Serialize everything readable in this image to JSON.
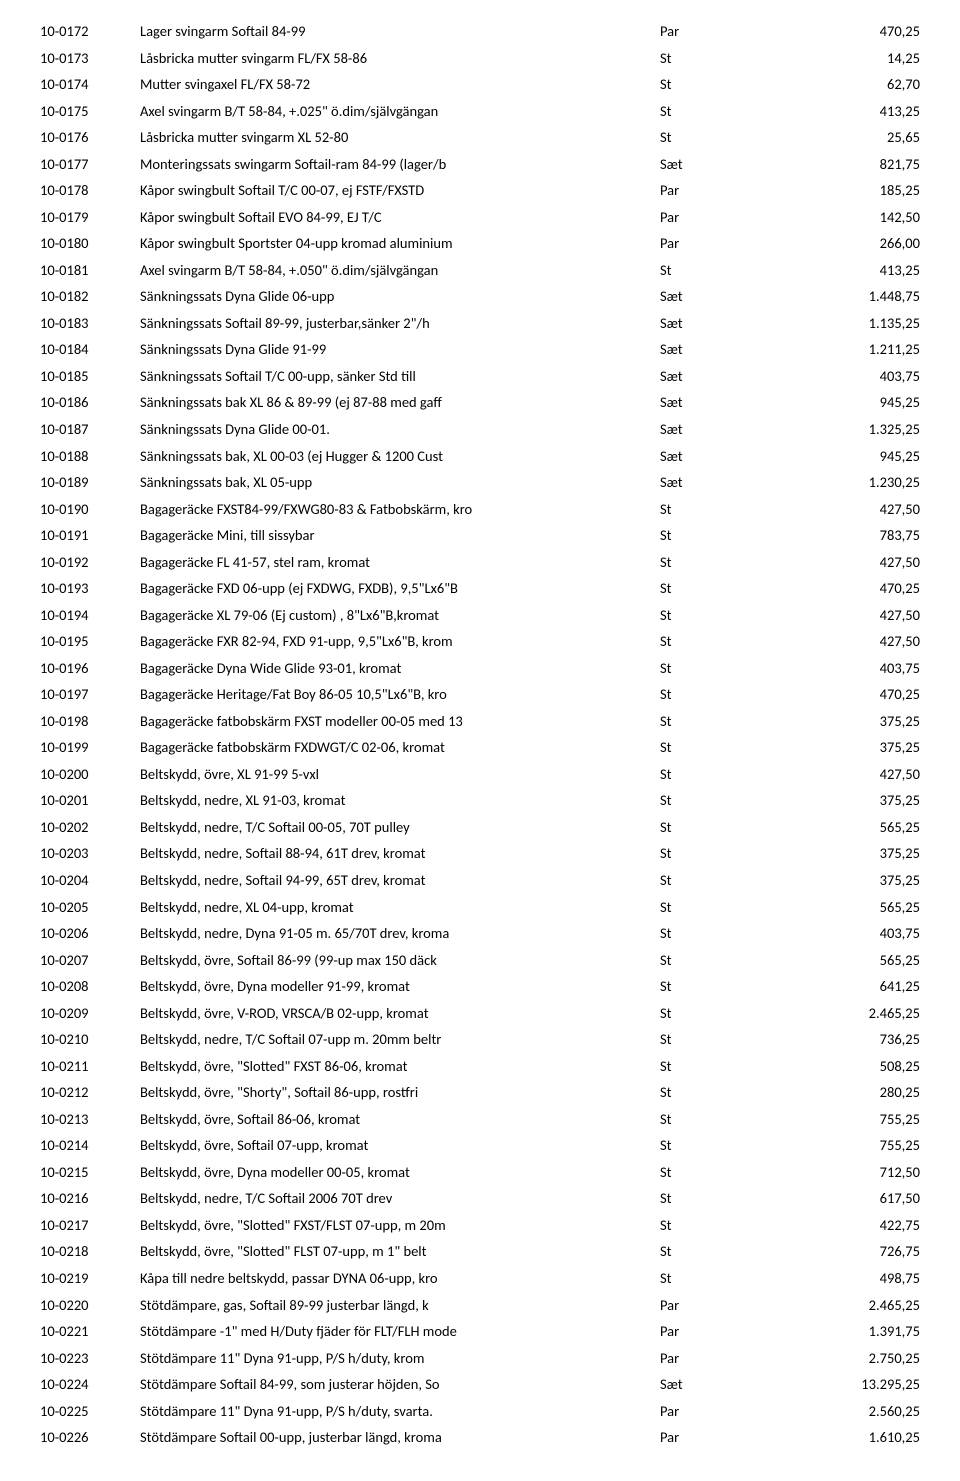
{
  "rows": [
    {
      "code": "10-0172",
      "desc": "Lager svingarm Softail 84-99",
      "unit": "Par",
      "price": "470,25"
    },
    {
      "code": "10-0173",
      "desc": "Låsbricka mutter svingarm FL/FX 58-86",
      "unit": "St",
      "price": "14,25"
    },
    {
      "code": "10-0174",
      "desc": "Mutter svingaxel FL/FX 58-72",
      "unit": "St",
      "price": "62,70"
    },
    {
      "code": "10-0175",
      "desc": "Axel svingarm B/T 58-84, +.025\" ö.dim/självgängan",
      "unit": "St",
      "price": "413,25"
    },
    {
      "code": "10-0176",
      "desc": "Låsbricka mutter svingarm XL 52-80",
      "unit": "St",
      "price": "25,65"
    },
    {
      "code": "10-0177",
      "desc": "Monteringssats swingarm Softail-ram 84-99 (lager/b",
      "unit": "Sæt",
      "price": "821,75"
    },
    {
      "code": "10-0178",
      "desc": "Kåpor swingbult Softail T/C 00-07, ej FSTF/FXSTD",
      "unit": "Par",
      "price": "185,25"
    },
    {
      "code": "10-0179",
      "desc": "Kåpor swingbult Softail EVO 84-99, EJ T/C",
      "unit": "Par",
      "price": "142,50"
    },
    {
      "code": "10-0180",
      "desc": "Kåpor swingbult Sportster 04-upp kromad aluminium",
      "unit": "Par",
      "price": "266,00"
    },
    {
      "code": "10-0181",
      "desc": "Axel svingarm B/T 58-84, +.050\" ö.dim/självgängan",
      "unit": "St",
      "price": "413,25"
    },
    {
      "code": "10-0182",
      "desc": "Sänkningssats Dyna Glide 06-upp",
      "unit": "Sæt",
      "price": "1.448,75"
    },
    {
      "code": "10-0183",
      "desc": "Sänkningssats Softail 89-99, justerbar,sänker 2\"/h",
      "unit": "Sæt",
      "price": "1.135,25"
    },
    {
      "code": "10-0184",
      "desc": "Sänkningssats Dyna Glide 91-99",
      "unit": "Sæt",
      "price": "1.211,25"
    },
    {
      "code": "10-0185",
      "desc": "Sänkningssats Softail T/C 00-upp, sänker Std till",
      "unit": "Sæt",
      "price": "403,75"
    },
    {
      "code": "10-0186",
      "desc": "Sänkningssats bak XL 86 & 89-99 (ej 87-88 med gaff",
      "unit": "Sæt",
      "price": "945,25"
    },
    {
      "code": "10-0187",
      "desc": "Sänkningssats Dyna Glide 00-01.",
      "unit": "Sæt",
      "price": "1.325,25"
    },
    {
      "code": "10-0188",
      "desc": "Sänkningssats bak, XL 00-03 (ej Hugger & 1200 Cust",
      "unit": "Sæt",
      "price": "945,25"
    },
    {
      "code": "10-0189",
      "desc": "Sänkningssats bak, XL 05-upp",
      "unit": "Sæt",
      "price": "1.230,25"
    },
    {
      "code": "10-0190",
      "desc": "Bagageräcke FXST84-99/FXWG80-83 & Fatbobskärm, kro",
      "unit": "St",
      "price": "427,50"
    },
    {
      "code": "10-0191",
      "desc": "Bagageräcke Mini, till sissybar",
      "unit": "St",
      "price": "783,75"
    },
    {
      "code": "10-0192",
      "desc": "Bagageräcke FL 41-57, stel ram, kromat",
      "unit": "St",
      "price": "427,50"
    },
    {
      "code": "10-0193",
      "desc": "Bagageräcke FXD 06-upp (ej FXDWG, FXDB), 9,5\"Lx6\"B",
      "unit": "St",
      "price": "470,25"
    },
    {
      "code": "10-0194",
      "desc": "Bagageräcke XL 79-06 (Ej custom) , 8\"Lx6\"B,kromat",
      "unit": "St",
      "price": "427,50"
    },
    {
      "code": "10-0195",
      "desc": "Bagageräcke FXR 82-94, FXD 91-upp, 9,5\"Lx6\"B, krom",
      "unit": "St",
      "price": "427,50"
    },
    {
      "code": "10-0196",
      "desc": "Bagageräcke Dyna Wide Glide 93-01, kromat",
      "unit": "St",
      "price": "403,75"
    },
    {
      "code": "10-0197",
      "desc": "Bagageräcke Heritage/Fat Boy 86-05 10,5\"Lx6\"B, kro",
      "unit": "St",
      "price": "470,25"
    },
    {
      "code": "10-0198",
      "desc": "Bagageräcke fatbobskärm FXST modeller 00-05 med 13",
      "unit": "St",
      "price": "375,25"
    },
    {
      "code": "10-0199",
      "desc": "Bagageräcke fatbobskärm FXDWGT/C 02-06, kromat",
      "unit": "St",
      "price": "375,25"
    },
    {
      "code": "10-0200",
      "desc": "Beltskydd, övre, XL 91-99 5-vxl",
      "unit": "St",
      "price": "427,50"
    },
    {
      "code": "10-0201",
      "desc": "Beltskydd, nedre,  XL 91-03, kromat",
      "unit": "St",
      "price": "375,25"
    },
    {
      "code": "10-0202",
      "desc": "Beltskydd, nedre, T/C Softail 00-05, 70T pulley",
      "unit": "St",
      "price": "565,25"
    },
    {
      "code": "10-0203",
      "desc": "Beltskydd, nedre, Softail 88-94, 61T drev, kromat",
      "unit": "St",
      "price": "375,25"
    },
    {
      "code": "10-0204",
      "desc": "Beltskydd, nedre, Softail 94-99, 65T drev, kromat",
      "unit": "St",
      "price": "375,25"
    },
    {
      "code": "10-0205",
      "desc": "Beltskydd, nedre,  XL 04-upp, kromat",
      "unit": "St",
      "price": "565,25"
    },
    {
      "code": "10-0206",
      "desc": "Beltskydd, nedre, Dyna 91-05 m. 65/70T drev, kroma",
      "unit": "St",
      "price": "403,75"
    },
    {
      "code": "10-0207",
      "desc": "Beltskydd, övre, Softail 86-99 (99-up max 150 däck",
      "unit": "St",
      "price": "565,25"
    },
    {
      "code": "10-0208",
      "desc": "Beltskydd, övre, Dyna modeller 91-99, kromat",
      "unit": "St",
      "price": "641,25"
    },
    {
      "code": "10-0209",
      "desc": "Beltskydd, övre, V-ROD, VRSCA/B 02-upp, kromat",
      "unit": "St",
      "price": "2.465,25"
    },
    {
      "code": "10-0210",
      "desc": "Beltskydd, nedre, T/C Softail 07-upp m. 20mm beltr",
      "unit": "St",
      "price": "736,25"
    },
    {
      "code": "10-0211",
      "desc": "Beltskydd, övre, \"Slotted\" FXST 86-06, kromat",
      "unit": "St",
      "price": "508,25"
    },
    {
      "code": "10-0212",
      "desc": "Beltskydd, övre, \"Shorty\", Softail 86-upp, rostfri",
      "unit": "St",
      "price": "280,25"
    },
    {
      "code": "10-0213",
      "desc": "Beltskydd, övre, Softail 86-06, kromat",
      "unit": "St",
      "price": "755,25"
    },
    {
      "code": "10-0214",
      "desc": "Beltskydd, övre, Softail 07-upp, kromat",
      "unit": "St",
      "price": "755,25"
    },
    {
      "code": "10-0215",
      "desc": "Beltskydd, övre, Dyna modeller 00-05, kromat",
      "unit": "St",
      "price": "712,50"
    },
    {
      "code": "10-0216",
      "desc": "Beltskydd, nedre, T/C Softail 2006 70T drev",
      "unit": "St",
      "price": "617,50"
    },
    {
      "code": "10-0217",
      "desc": "Beltskydd, övre, \"Slotted\" FXST/FLST 07-upp, m 20m",
      "unit": "St",
      "price": "422,75"
    },
    {
      "code": "10-0218",
      "desc": "Beltskydd, övre, \"Slotted\" FLST 07-upp, m 1\"  belt",
      "unit": "St",
      "price": "726,75"
    },
    {
      "code": "10-0219",
      "desc": "Kåpa till nedre beltskydd, passar DYNA 06-upp, kro",
      "unit": "St",
      "price": "498,75"
    },
    {
      "code": "10-0220",
      "desc": "Stötdämpare, gas, Softail 89-99 justerbar längd, k",
      "unit": "Par",
      "price": "2.465,25"
    },
    {
      "code": "10-0221",
      "desc": "Stötdämpare -1\" med H/Duty fjäder för FLT/FLH mode",
      "unit": "Par",
      "price": "1.391,75"
    },
    {
      "code": "10-0223",
      "desc": "Stötdämpare 11\" Dyna 91-upp, P/S h/duty, krom",
      "unit": "Par",
      "price": "2.750,25"
    },
    {
      "code": "10-0224",
      "desc": "Stötdämpare Softail 84-99, som justerar höjden, So",
      "unit": "Sæt",
      "price": "13.295,25"
    },
    {
      "code": "10-0225",
      "desc": "Stötdämpare 11\" Dyna 91-upp, P/S h/duty, svarta.",
      "unit": "Par",
      "price": "2.560,25"
    },
    {
      "code": "10-0226",
      "desc": "Stötdämpare Softail 00-upp, justerbar längd, kroma",
      "unit": "Par",
      "price": "1.610,25"
    }
  ]
}
